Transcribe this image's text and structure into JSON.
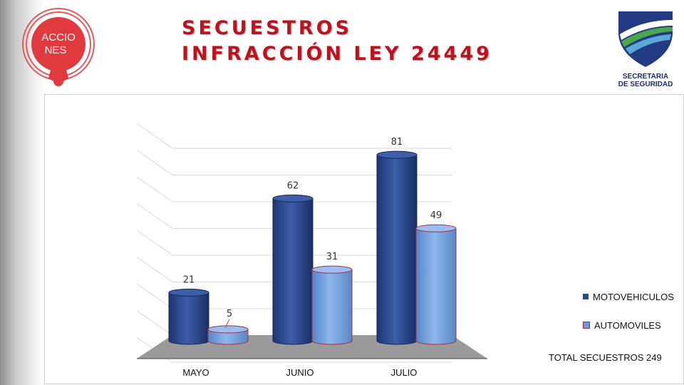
{
  "header": {
    "title_line1": "SECUESTROS",
    "title_line2": "INFRACCIÓN LEY 24449",
    "acciones_logo": {
      "line1": "ACCIO",
      "line2": "NES",
      "color": "#e03a3e"
    },
    "secretaria_logo": {
      "line1": "SECRETARIA",
      "line2": "DE SEGURIDAD",
      "icon": "shield-icon"
    }
  },
  "chart_data": {
    "type": "bar",
    "categories": [
      "MAYO",
      "JUNIO",
      "JULIO"
    ],
    "series": [
      {
        "name": "MOTOVEHICULOS",
        "values": [
          21,
          62,
          81
        ],
        "color": "#2e4a8f"
      },
      {
        "name": "AUTOMOVILES",
        "values": [
          5,
          31,
          49
        ],
        "color": "#6f9ad6"
      }
    ],
    "ylim": [
      0,
      90
    ],
    "grid": true,
    "legend": "right",
    "style": "3d-cylinder"
  },
  "legend": [
    {
      "label": "MOTOVEHICULOS",
      "color": "#2e4a8f"
    },
    {
      "label": "AUTOMOVILES",
      "color": "#6f9ad6"
    }
  ],
  "total_label": "TOTAL SECUESTROS 249"
}
